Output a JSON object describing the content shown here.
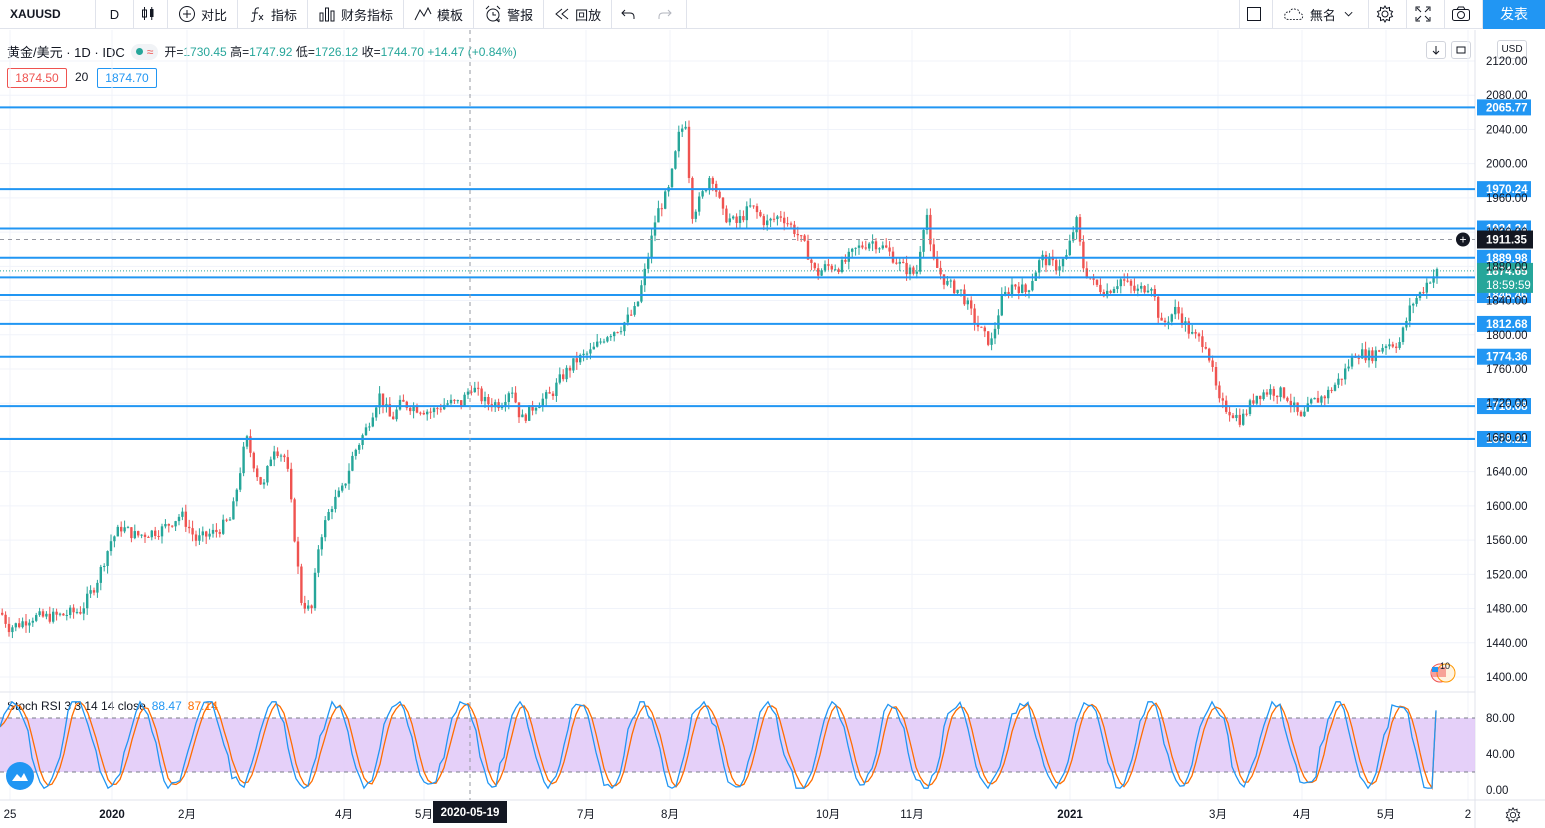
{
  "toolbar": {
    "symbol": "XAUUSD",
    "interval": "D",
    "compare": "对比",
    "indicators": "指标",
    "financials": "财务指标",
    "templates": "模板",
    "alert": "警报",
    "replay": "回放",
    "layout_name": "無名",
    "publish": "发表"
  },
  "legend": {
    "title": "黄金/美元 · 1D · IDC",
    "open_label": "开=",
    "open": "1730.45",
    "high_label": "高=",
    "high": "1747.92",
    "low_label": "低=",
    "low": "1726.12",
    "close_label": "收=",
    "close": "1744.70",
    "change": "+14.47 (+0.84%)",
    "bid": "1874.50",
    "spread": "20",
    "ask": "1874.70"
  },
  "currency": "USD",
  "crosshair_price": "1911.35",
  "crosshair_date": "2020-05-19",
  "countdown": "18:59:59",
  "indicator": {
    "name": "Stoch RSI 3 3 14 14 close",
    "k": "88.47",
    "d": "87.14"
  },
  "colors": {
    "up": "#26a69a",
    "down": "#ef5350",
    "hline": "#2196f3",
    "k_line": "#2196f3",
    "d_line": "#ff6d00",
    "band_fill": "#e1c8f8"
  },
  "chart_data": {
    "type": "candlestick",
    "price_axis": {
      "ticks": [
        "2120.00",
        "2080.00",
        "2040.00",
        "2000.00",
        "1960.00",
        "1920.00",
        "1880.00",
        "1840.00",
        "1800.00",
        "1760.00",
        "1720.00",
        "1680.00",
        "1640.00",
        "1600.00",
        "1560.00",
        "1520.00",
        "1480.00",
        "1440.00",
        "1400.00"
      ],
      "range": [
        1390,
        2130
      ]
    },
    "time_axis": [
      "25",
      "2020",
      "2月",
      "4月",
      "5月",
      "7月",
      "8月",
      "10月",
      "11月",
      "2021",
      "3月",
      "4月",
      "5月",
      "2"
    ],
    "horizontal_lines": [
      {
        "label": "2065.77",
        "price": 2065.77
      },
      {
        "label": "1970.24",
        "price": 1970.24
      },
      {
        "label": "1924.24",
        "price": 1924.24
      },
      {
        "label": "1889.98",
        "price": 1889.98
      },
      {
        "label": "1867.05",
        "price": 1867.05
      },
      {
        "label": "1846.46",
        "price": 1846.46
      },
      {
        "label": "1812.68",
        "price": 1812.68
      },
      {
        "label": "1774.36",
        "price": 1774.36
      },
      {
        "label": "1716.68",
        "price": 1716.68
      },
      {
        "label": "1678.21",
        "price": 1678.21
      }
    ],
    "last_price": "1874.65",
    "path_keypoints": [
      [
        0,
        1475
      ],
      [
        8,
        1458
      ],
      [
        18,
        1462
      ],
      [
        30,
        1470
      ],
      [
        45,
        1470
      ],
      [
        60,
        1472
      ],
      [
        80,
        1478
      ],
      [
        95,
        1510
      ],
      [
        110,
        1560
      ],
      [
        120,
        1575
      ],
      [
        135,
        1565
      ],
      [
        160,
        1572
      ],
      [
        180,
        1590
      ],
      [
        195,
        1560
      ],
      [
        215,
        1570
      ],
      [
        230,
        1585
      ],
      [
        245,
        1680
      ],
      [
        255,
        1640
      ],
      [
        262,
        1620
      ],
      [
        272,
        1670
      ],
      [
        285,
        1655
      ],
      [
        292,
        1580
      ],
      [
        300,
        1490
      ],
      [
        310,
        1475
      ],
      [
        318,
        1560
      ],
      [
        330,
        1600
      ],
      [
        342,
        1620
      ],
      [
        352,
        1660
      ],
      [
        365,
        1690
      ],
      [
        378,
        1730
      ],
      [
        390,
        1700
      ],
      [
        400,
        1720
      ],
      [
        415,
        1715
      ],
      [
        430,
        1710
      ],
      [
        445,
        1720
      ],
      [
        460,
        1720
      ],
      [
        470,
        1740
      ],
      [
        485,
        1720
      ],
      [
        500,
        1720
      ],
      [
        510,
        1740
      ],
      [
        520,
        1700
      ],
      [
        535,
        1720
      ],
      [
        550,
        1730
      ],
      [
        560,
        1750
      ],
      [
        575,
        1770
      ],
      [
        590,
        1780
      ],
      [
        605,
        1800
      ],
      [
        620,
        1810
      ],
      [
        635,
        1830
      ],
      [
        645,
        1880
      ],
      [
        655,
        1940
      ],
      [
        668,
        1970
      ],
      [
        678,
        2035
      ],
      [
        685,
        2050
      ],
      [
        690,
        1940
      ],
      [
        700,
        1960
      ],
      [
        710,
        1990
      ],
      [
        722,
        1940
      ],
      [
        735,
        1930
      ],
      [
        750,
        1950
      ],
      [
        765,
        1930
      ],
      [
        780,
        1940
      ],
      [
        795,
        1920
      ],
      [
        805,
        1900
      ],
      [
        815,
        1870
      ],
      [
        825,
        1880
      ],
      [
        840,
        1880
      ],
      [
        855,
        1900
      ],
      [
        870,
        1910
      ],
      [
        885,
        1900
      ],
      [
        900,
        1880
      ],
      [
        915,
        1870
      ],
      [
        925,
        1950
      ],
      [
        930,
        1890
      ],
      [
        945,
        1860
      ],
      [
        960,
        1850
      ],
      [
        972,
        1820
      ],
      [
        982,
        1800
      ],
      [
        990,
        1790
      ],
      [
        1000,
        1840
      ],
      [
        1012,
        1860
      ],
      [
        1025,
        1850
      ],
      [
        1040,
        1890
      ],
      [
        1055,
        1880
      ],
      [
        1065,
        1890
      ],
      [
        1075,
        1935
      ],
      [
        1082,
        1880
      ],
      [
        1092,
        1860
      ],
      [
        1105,
        1850
      ],
      [
        1120,
        1865
      ],
      [
        1135,
        1850
      ],
      [
        1150,
        1860
      ],
      [
        1160,
        1810
      ],
      [
        1175,
        1830
      ],
      [
        1190,
        1800
      ],
      [
        1205,
        1790
      ],
      [
        1218,
        1720
      ],
      [
        1230,
        1710
      ],
      [
        1240,
        1700
      ],
      [
        1255,
        1730
      ],
      [
        1270,
        1735
      ],
      [
        1285,
        1730
      ],
      [
        1300,
        1700
      ],
      [
        1310,
        1720
      ],
      [
        1325,
        1730
      ],
      [
        1340,
        1750
      ],
      [
        1355,
        1780
      ],
      [
        1370,
        1775
      ],
      [
        1385,
        1790
      ],
      [
        1398,
        1790
      ],
      [
        1410,
        1835
      ],
      [
        1420,
        1850
      ],
      [
        1428,
        1865
      ],
      [
        1437,
        1874
      ]
    ],
    "stoch_axis": {
      "ticks": [
        "80.00",
        "40.00",
        "0.00"
      ],
      "band": [
        20,
        80
      ]
    }
  }
}
